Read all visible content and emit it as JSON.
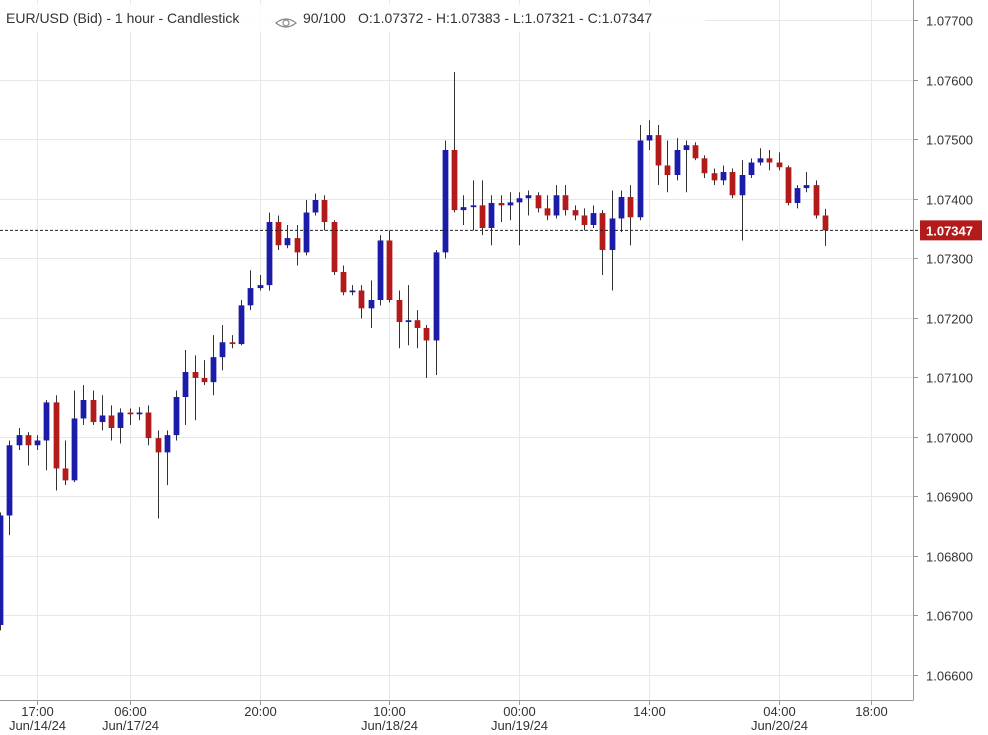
{
  "chart_data": {
    "type": "candlestick",
    "title": "EUR/USD (Bid) - 1 hour - Candlestick",
    "header": "90/100",
    "ohlc_text": "O:1.07372 - H:1.07383 - L:1.07321 - C:1.07347",
    "up_color": "#1c1cab",
    "down_color": "#b31b1b",
    "grid": true,
    "last_price": 1.07347,
    "open": [
      1.06684,
      1.06868,
      1.06986,
      1.07003,
      1.06986,
      1.06994,
      1.07058,
      1.06947,
      1.06927,
      1.07031,
      1.07062,
      1.07025,
      1.07036,
      1.07015,
      1.07041,
      1.07038,
      1.07041,
      1.06998,
      1.06974,
      1.07003,
      1.07067,
      1.07109,
      1.07099,
      1.07092,
      1.07134,
      1.07159,
      1.07156,
      1.07221,
      1.0725,
      1.07255,
      1.07361,
      1.07322,
      1.07334,
      1.0731,
      1.07377,
      1.07398,
      1.07361,
      1.07277,
      1.07243,
      1.07246,
      1.07216,
      1.0723,
      1.0733,
      1.0723,
      1.07193,
      1.07196,
      1.07183,
      1.07162,
      1.0731,
      1.07482,
      1.07381,
      1.07386,
      1.07389,
      1.07351,
      1.07393,
      1.07389,
      1.07394,
      1.07401,
      1.07406,
      1.07384,
      1.07372,
      1.07406,
      1.07381,
      1.07372,
      1.07356,
      1.07376,
      1.07314,
      1.07367,
      1.07403,
      1.07369,
      1.07498,
      1.07507,
      1.07456,
      1.0744,
      1.07482,
      1.0749,
      1.07468,
      1.07443,
      1.07431,
      1.07445,
      1.07406,
      1.0744,
      1.07461,
      1.07468,
      1.07461,
      1.07453,
      1.07393,
      1.07418,
      1.07423,
      1.07372
    ],
    "high": [
      1.06873,
      1.06994,
      1.07015,
      1.07008,
      1.07003,
      1.07062,
      1.0707,
      1.06994,
      1.07078,
      1.07087,
      1.07078,
      1.0707,
      1.07053,
      1.07048,
      1.07048,
      1.0705,
      1.07053,
      1.07011,
      1.07011,
      1.07078,
      1.07146,
      1.07137,
      1.07129,
      1.07171,
      1.07188,
      1.07171,
      1.0723,
      1.0728,
      1.07272,
      1.07377,
      1.07372,
      1.07356,
      1.07356,
      1.07398,
      1.07409,
      1.07406,
      1.07364,
      1.07288,
      1.07255,
      1.07255,
      1.07263,
      1.07339,
      1.07347,
      1.07246,
      1.07255,
      1.07213,
      1.07188,
      1.07314,
      1.07498,
      1.07613,
      1.07406,
      1.07431,
      1.07431,
      1.07406,
      1.07406,
      1.07411,
      1.07411,
      1.07414,
      1.07411,
      1.07406,
      1.07423,
      1.07423,
      1.07389,
      1.07384,
      1.07389,
      1.07381,
      1.07414,
      1.07414,
      1.07423,
      1.07524,
      1.07532,
      1.07524,
      1.07498,
      1.07502,
      1.07498,
      1.07495,
      1.07473,
      1.07451,
      1.07456,
      1.07451,
      1.07465,
      1.07468,
      1.07485,
      1.07482,
      1.07478,
      1.07456,
      1.07423,
      1.07445,
      1.07431,
      1.07383
    ],
    "low": [
      1.06675,
      1.06835,
      1.06978,
      1.06952,
      1.06978,
      1.06944,
      1.0691,
      1.06919,
      1.06924,
      1.0702,
      1.0702,
      1.07011,
      1.06994,
      1.06989,
      1.0702,
      1.07028,
      1.06986,
      1.06863,
      1.06919,
      1.06994,
      1.0702,
      1.07028,
      1.07087,
      1.0707,
      1.07112,
      1.07149,
      1.07154,
      1.07213,
      1.07246,
      1.07246,
      1.07314,
      1.07317,
      1.07288,
      1.07305,
      1.07372,
      1.07347,
      1.07272,
      1.07238,
      1.07238,
      1.07199,
      1.07183,
      1.07221,
      1.07226,
      1.07149,
      1.07154,
      1.07149,
      1.07099,
      1.07104,
      1.073,
      1.07377,
      1.07356,
      1.07347,
      1.07339,
      1.07322,
      1.07361,
      1.07364,
      1.07322,
      1.07372,
      1.07377,
      1.07364,
      1.07367,
      1.07372,
      1.07364,
      1.07347,
      1.07351,
      1.07272,
      1.07246,
      1.07344,
      1.07322,
      1.07364,
      1.07482,
      1.07423,
      1.07411,
      1.07431,
      1.07411,
      1.07465,
      1.07435,
      1.07423,
      1.07423,
      1.07401,
      1.0733,
      1.07435,
      1.07456,
      1.07448,
      1.07448,
      1.07389,
      1.07384,
      1.07411,
      1.07367,
      1.07321
    ],
    "close": [
      1.06868,
      1.06986,
      1.07003,
      1.06986,
      1.06994,
      1.07058,
      1.06947,
      1.06927,
      1.07031,
      1.07062,
      1.07025,
      1.07036,
      1.07015,
      1.07041,
      1.07038,
      1.07041,
      1.06998,
      1.06974,
      1.07003,
      1.07067,
      1.07109,
      1.07099,
      1.07092,
      1.07134,
      1.07159,
      1.07156,
      1.07221,
      1.0725,
      1.07255,
      1.07361,
      1.07322,
      1.07334,
      1.0731,
      1.07377,
      1.07398,
      1.07361,
      1.07277,
      1.07243,
      1.07246,
      1.07216,
      1.0723,
      1.0733,
      1.0723,
      1.07193,
      1.07196,
      1.07183,
      1.07162,
      1.0731,
      1.07482,
      1.07381,
      1.07386,
      1.07389,
      1.07351,
      1.07393,
      1.07389,
      1.07394,
      1.07401,
      1.07406,
      1.07384,
      1.07372,
      1.07406,
      1.07381,
      1.07372,
      1.07356,
      1.07376,
      1.07314,
      1.07367,
      1.07403,
      1.07369,
      1.07498,
      1.07507,
      1.07456,
      1.0744,
      1.07482,
      1.0749,
      1.07468,
      1.07443,
      1.07431,
      1.07445,
      1.07406,
      1.0744,
      1.07461,
      1.07468,
      1.07461,
      1.07453,
      1.07393,
      1.07418,
      1.07423,
      1.07372,
      1.07347
    ],
    "xlim": [
      0,
      98.5
    ],
    "xticks": [
      {
        "value": 4,
        "label": "17:00",
        "date": "Jun/14/24"
      },
      {
        "value": 14,
        "label": "06:00",
        "date": "Jun/17/24"
      },
      {
        "value": 28,
        "label": "20:00"
      },
      {
        "value": 42,
        "label": "10:00",
        "date": "Jun/18/24"
      },
      {
        "value": 56,
        "label": "00:00",
        "date": "Jun/19/24"
      },
      {
        "value": 70,
        "label": "14:00"
      },
      {
        "value": 84,
        "label": "04:00",
        "date": "Jun/20/24"
      },
      {
        "value": 94,
        "label": "18:00"
      }
    ],
    "ylim": [
      1.06558,
      1.07734
    ],
    "yticks": [
      {
        "value": 1.066,
        "label": "1.06600"
      },
      {
        "value": 1.067,
        "label": "1.06700"
      },
      {
        "value": 1.068,
        "label": "1.06800"
      },
      {
        "value": 1.069,
        "label": "1.06900"
      },
      {
        "value": 1.07,
        "label": "1.07000"
      },
      {
        "value": 1.071,
        "label": "1.07100"
      },
      {
        "value": 1.072,
        "label": "1.07200"
      },
      {
        "value": 1.073,
        "label": "1.07300"
      },
      {
        "value": 1.074,
        "label": "1.07400"
      },
      {
        "value": 1.075,
        "label": "1.07500"
      },
      {
        "value": 1.076,
        "label": "1.07600"
      },
      {
        "value": 1.077,
        "label": "1.07700"
      }
    ]
  }
}
